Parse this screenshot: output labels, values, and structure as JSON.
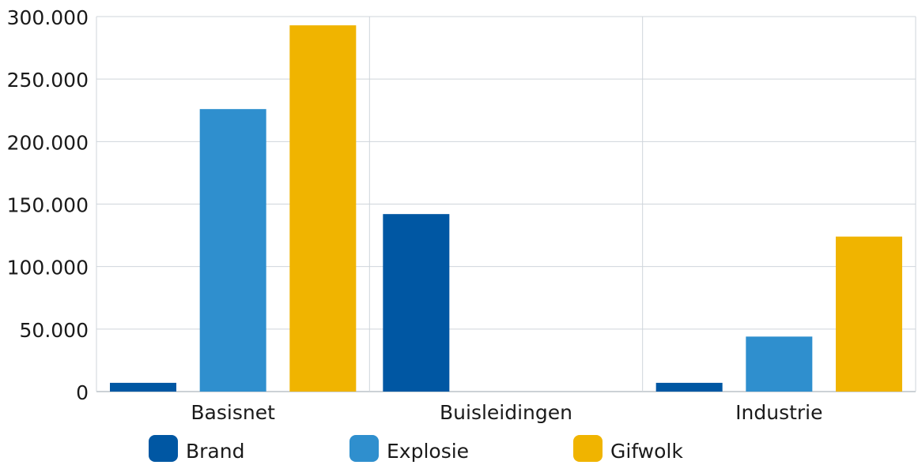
{
  "chart_data": {
    "type": "bar",
    "title": "",
    "xlabel": "",
    "ylabel": "",
    "categories": [
      "Basisnet",
      "Buisleidingen",
      "Industrie"
    ],
    "series": [
      {
        "name": "Brand",
        "color": "#0057a3",
        "values": [
          7000,
          142000,
          7000
        ]
      },
      {
        "name": "Explosie",
        "color": "#2f8fce",
        "values": [
          226000,
          0,
          44000
        ]
      },
      {
        "name": "Gifwolk",
        "color": "#f0b400",
        "values": [
          293000,
          0,
          124000
        ]
      }
    ],
    "ylim": [
      0,
      300000
    ],
    "yticks": [
      0,
      50000,
      100000,
      150000,
      200000,
      250000,
      300000
    ],
    "ytick_labels": [
      "0",
      "50.000",
      "100.000",
      "150.000",
      "200.000",
      "250.000",
      "300.000"
    ],
    "grid": true,
    "legend_position": "bottom"
  }
}
